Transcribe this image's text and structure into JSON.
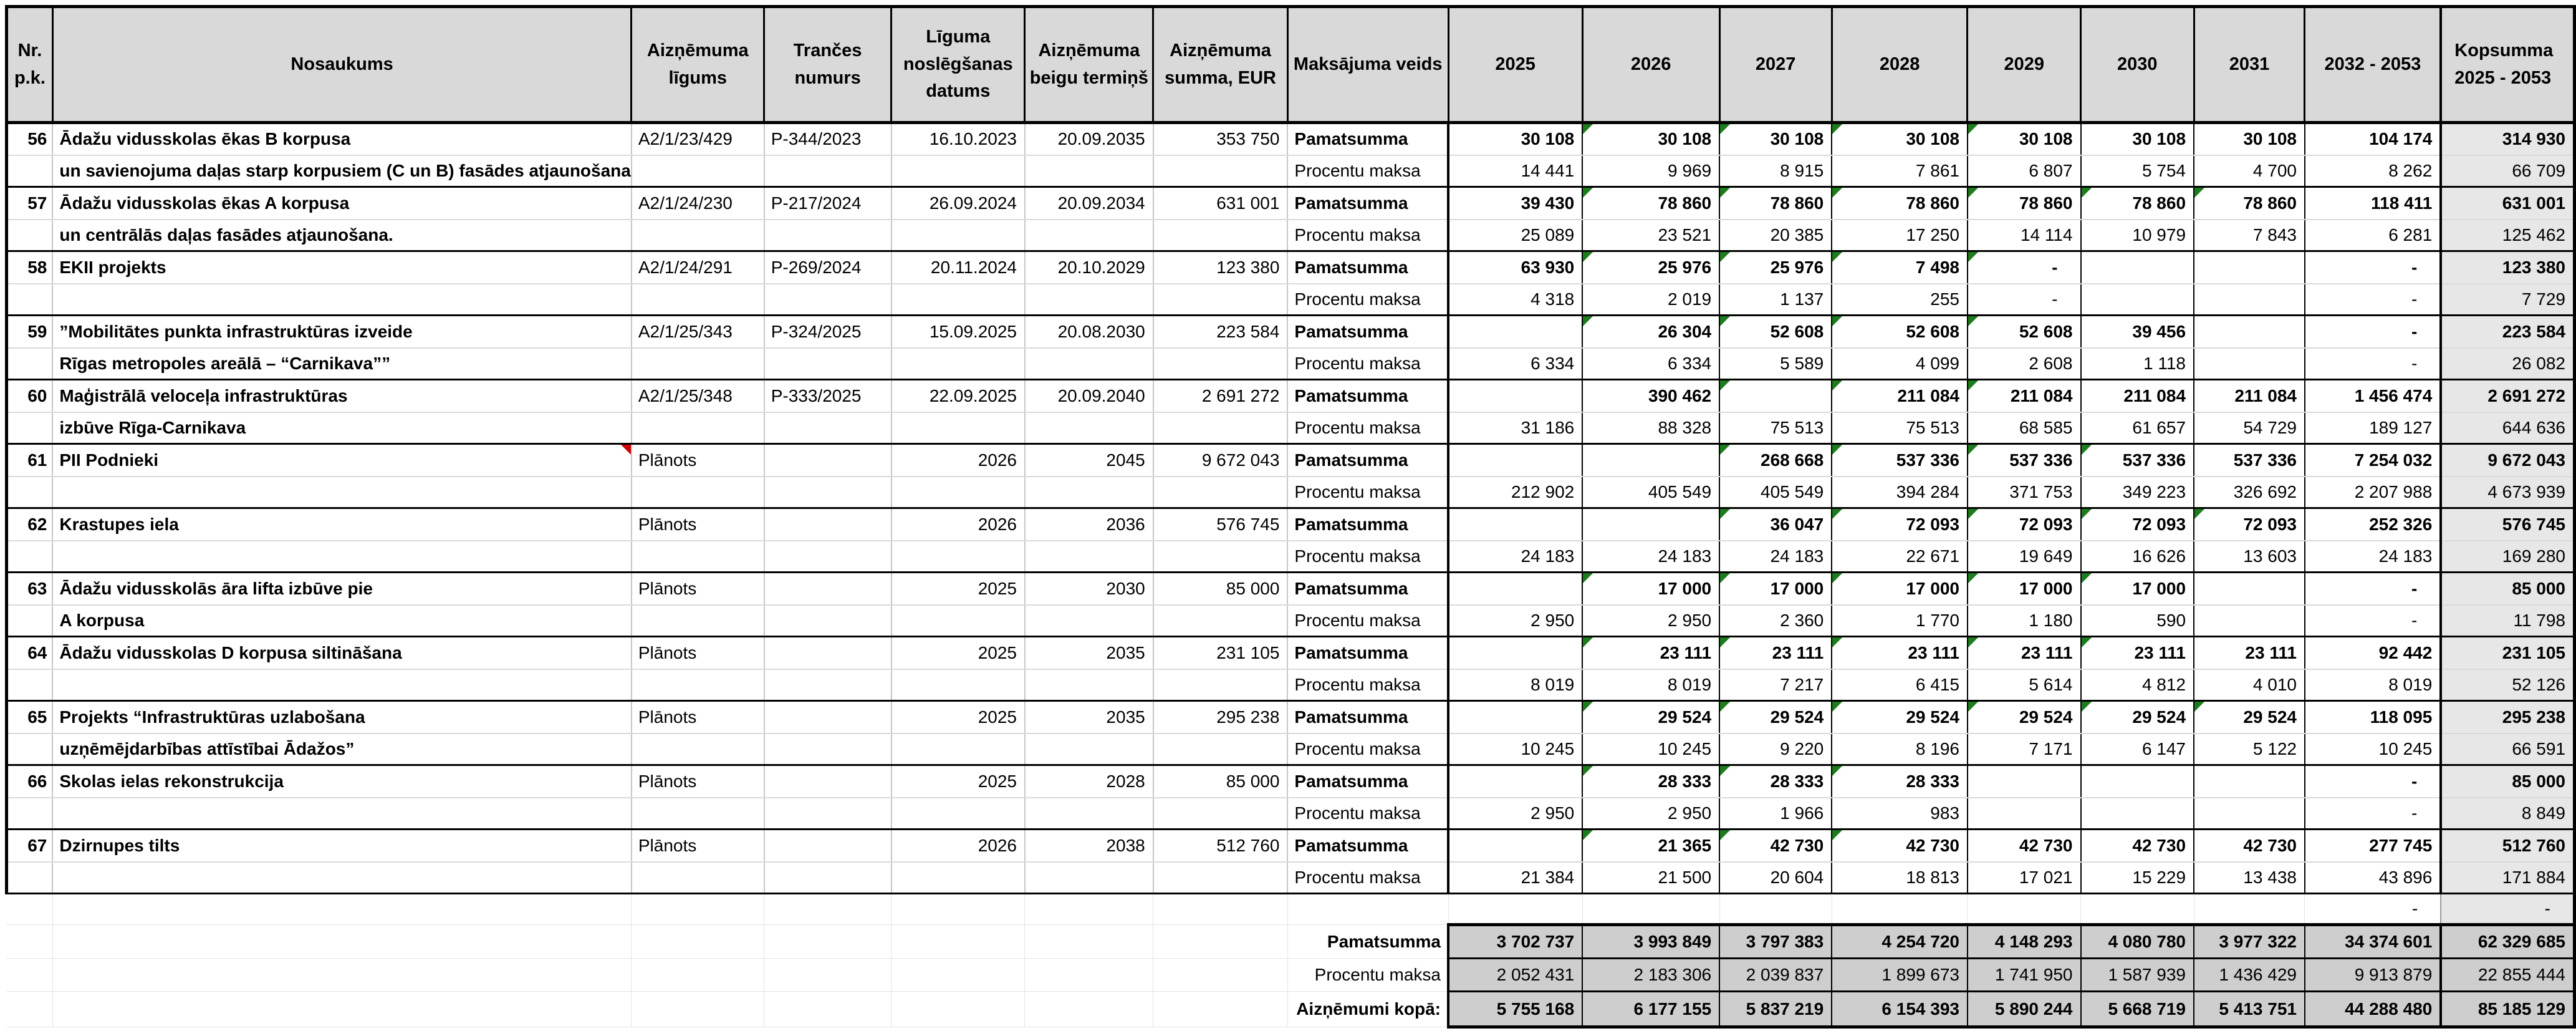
{
  "colors": {
    "header_bg": "#d9d9d9",
    "kopsumma_bg": "#e7e7e7",
    "totals_bg": "#cecece",
    "flag_green": "#1e7c1e",
    "comment_red": "#cc0000",
    "grid_black": "#000000",
    "grid_light": "#c6c6c6"
  },
  "table": {
    "headers": [
      "Nr. p.k.",
      "Nosaukums",
      "Aizņēmuma līgums",
      "Trančes numurs",
      "Līguma noslēgšanas datums",
      "Aizņēmuma beigu termiņš",
      "Aizņēmuma summa, EUR",
      "Maksājuma veids",
      "2025",
      "2026",
      "2027",
      "2028",
      "2029",
      "2030",
      "2031",
      "2032 - 2053",
      "Kopsumma 2025 - 2053"
    ],
    "payment_types": [
      "Pamatsumma",
      "Procentu maksa"
    ],
    "loans": [
      {
        "nr": "56",
        "name1": "Ādažu vidusskolas ēkas B korpusa",
        "name2": "un savienojuma daļas starp korpusiem (C un B) fasādes atjaunošana",
        "contract": "A2/1/23/429",
        "tranche": "P-344/2023",
        "signed": "16.10.2023",
        "ends": "20.09.2035",
        "amount": "353 750",
        "comment": false,
        "flags": [
          1,
          2,
          3,
          4
        ],
        "pamatsumma": [
          "30 108",
          "30 108",
          "30 108",
          "30 108",
          "30 108",
          "30 108",
          "30 108",
          "104 174",
          "314 930"
        ],
        "procentu": [
          "14 441",
          "9 969",
          "8 915",
          "7 861",
          "6 807",
          "5 754",
          "4 700",
          "8 262",
          "66 709"
        ]
      },
      {
        "nr": "57",
        "name1": "Ādažu vidusskolas ēkas A korpusa",
        "name2": "un centrālās daļas fasādes atjaunošana.",
        "contract": "A2/1/24/230",
        "tranche": "P-217/2024",
        "signed": "26.09.2024",
        "ends": "20.09.2034",
        "amount": "631 001",
        "comment": false,
        "flags": [
          1,
          2,
          3,
          4,
          5,
          6
        ],
        "pamatsumma": [
          "39 430",
          "78 860",
          "78 860",
          "78 860",
          "78 860",
          "78 860",
          "78 860",
          "118 411",
          "631 001"
        ],
        "procentu": [
          "25 089",
          "23 521",
          "20 385",
          "17 250",
          "14 114",
          "10 979",
          "7 843",
          "6 281",
          "125 462"
        ]
      },
      {
        "nr": "58",
        "name1": "EKII projekts",
        "name2": "",
        "contract": "A2/1/24/291",
        "tranche": "P-269/2024",
        "signed": "20.11.2024",
        "ends": "20.10.2029",
        "amount": "123 380",
        "comment": false,
        "flags": [
          1,
          2,
          3,
          4
        ],
        "pamatsumma": [
          "63 930",
          "25 976",
          "25 976",
          "7 498",
          "-",
          "",
          "",
          "-",
          "123 380"
        ],
        "procentu": [
          "4 318",
          "2 019",
          "1 137",
          "255",
          "-",
          "",
          "",
          "-",
          "7 729"
        ]
      },
      {
        "nr": "59",
        "name1": "”Mobilitātes punkta infrastruktūras izveide",
        "name2": "Rīgas metropoles areālā – “Carnikava””",
        "contract": "A2/1/25/343",
        "tranche": "P-324/2025",
        "signed": "15.09.2025",
        "ends": "20.08.2030",
        "amount": "223 584",
        "comment": false,
        "flags": [
          1,
          2,
          3,
          4
        ],
        "pamatsumma": [
          "",
          "26 304",
          "52 608",
          "52 608",
          "52 608",
          "39 456",
          "",
          "-",
          "223 584"
        ],
        "procentu": [
          "6 334",
          "6 334",
          "5 589",
          "4 099",
          "2 608",
          "1 118",
          "",
          "-",
          "26 082"
        ]
      },
      {
        "nr": "60",
        "name1": "Maģistrālā  veloceļa infrastruktūras",
        "name2": "izbūve Rīga-Carnikava",
        "contract": "A2/1/25/348",
        "tranche": "P-333/2025",
        "signed": "22.09.2025",
        "ends": "20.09.2040",
        "amount": "2 691 272",
        "comment": false,
        "flags": [
          2,
          3,
          4
        ],
        "pamatsumma": [
          "",
          "390 462",
          "",
          "211 084",
          "211 084",
          "211 084",
          "211 084",
          "1 456 474",
          "2 691 272"
        ],
        "procentu": [
          "31 186",
          "88 328",
          "75 513",
          "75 513",
          "68 585",
          "61 657",
          "54 729",
          "189 127",
          "644 636"
        ]
      },
      {
        "nr": "61",
        "name1": "PII Podnieki",
        "name2": "",
        "contract": "Plānots",
        "tranche": "",
        "signed": "2026",
        "ends": "2045",
        "amount": "9 672 043",
        "comment": true,
        "flags": [
          2,
          3,
          4,
          5
        ],
        "pamatsumma": [
          "",
          "",
          "268 668",
          "537 336",
          "537 336",
          "537 336",
          "537 336",
          "7 254 032",
          "9 672 043"
        ],
        "procentu": [
          "212 902",
          "405 549",
          "405 549",
          "394 284",
          "371 753",
          "349 223",
          "326 692",
          "2 207 988",
          "4 673 939"
        ]
      },
      {
        "nr": "62",
        "name1": "Krastupes iela",
        "name2": "",
        "contract": "Plānots",
        "tranche": "",
        "signed": "2026",
        "ends": "2036",
        "amount": "576 745",
        "comment": false,
        "flags": [
          2,
          3,
          4,
          5,
          6
        ],
        "pamatsumma": [
          "",
          "",
          "36 047",
          "72 093",
          "72 093",
          "72 093",
          "72 093",
          "252 326",
          "576 745"
        ],
        "procentu": [
          "24 183",
          "24 183",
          "24 183",
          "22 671",
          "19 649",
          "16 626",
          "13 603",
          "24 183",
          "169 280"
        ]
      },
      {
        "nr": "63",
        "name1": "Ādažu vidusskolās āra lifta izbūve pie",
        "name2": "A korpusa",
        "contract": "Plānots",
        "tranche": "",
        "signed": "2025",
        "ends": "2030",
        "amount": "85 000",
        "comment": false,
        "flags": [
          1,
          2,
          3,
          4,
          5
        ],
        "pamatsumma": [
          "",
          "17 000",
          "17 000",
          "17 000",
          "17 000",
          "17 000",
          "",
          "-",
          "85 000"
        ],
        "procentu": [
          "2 950",
          "2 950",
          "2 360",
          "1 770",
          "1 180",
          "590",
          "",
          "-",
          "11 798"
        ]
      },
      {
        "nr": "64",
        "name1": "Ādažu vidusskolas D korpusa siltināšana",
        "name2": "",
        "contract": "Plānots",
        "tranche": "",
        "signed": "2025",
        "ends": "2035",
        "amount": "231 105",
        "comment": false,
        "flags": [
          1,
          2,
          3,
          4,
          5
        ],
        "pamatsumma": [
          "",
          "23 111",
          "23 111",
          "23 111",
          "23 111",
          "23 111",
          "23 111",
          "92 442",
          "231 105"
        ],
        "procentu": [
          "8 019",
          "8 019",
          "7 217",
          "6 415",
          "5 614",
          "4 812",
          "4 010",
          "8 019",
          "52 126"
        ]
      },
      {
        "nr": "65",
        "name1": "Projekts “Infrastruktūras uzlabošana",
        "name2": "uzņēmējdarbības attīstībai Ādažos”",
        "contract": "Plānots",
        "tranche": "",
        "signed": "2025",
        "ends": "2035",
        "amount": "295 238",
        "comment": false,
        "flags": [
          1,
          2,
          3,
          4,
          5,
          6
        ],
        "pamatsumma": [
          "",
          "29 524",
          "29 524",
          "29 524",
          "29 524",
          "29 524",
          "29 524",
          "118 095",
          "295 238"
        ],
        "procentu": [
          "10 245",
          "10 245",
          "9 220",
          "8 196",
          "7 171",
          "6 147",
          "5 122",
          "10 245",
          "66 591"
        ]
      },
      {
        "nr": "66",
        "name1": "Skolas ielas rekonstrukcija",
        "name2": "",
        "contract": "Plānots",
        "tranche": "",
        "signed": "2025",
        "ends": "2028",
        "amount": "85 000",
        "comment": false,
        "flags": [
          1,
          2,
          3
        ],
        "pamatsumma": [
          "",
          "28 333",
          "28 333",
          "28 333",
          "",
          "",
          "",
          "-",
          "85 000"
        ],
        "procentu": [
          "2 950",
          "2 950",
          "1 966",
          "983",
          "",
          "",
          "",
          "-",
          "8 849"
        ]
      },
      {
        "nr": "67",
        "name1": "Dzirnupes tilts",
        "name2": "",
        "contract": "Plānots",
        "tranche": "",
        "signed": "2026",
        "ends": "2038",
        "amount": "512 760",
        "comment": false,
        "flags": [
          1,
          2,
          3
        ],
        "pamatsumma": [
          "",
          "21 365",
          "42 730",
          "42 730",
          "42 730",
          "42 730",
          "42 730",
          "277 745",
          "512 760"
        ],
        "procentu": [
          "21 384",
          "21 500",
          "20 604",
          "18 813",
          "17 021",
          "15 229",
          "13 438",
          "43 896",
          "171 884"
        ]
      }
    ],
    "dash_row": {
      "y2032_2053": "-",
      "kopsumma": "-"
    },
    "totals": {
      "rows": [
        {
          "label": "Pamatsumma",
          "values": [
            "3 702 737",
            "3 993 849",
            "3 797 383",
            "4 254 720",
            "4 148 293",
            "4 080 780",
            "3 977 322",
            "34 374 601",
            "62 329 685"
          ]
        },
        {
          "label": "Procentu maksa",
          "values": [
            "2 052 431",
            "2 183 306",
            "2 039 837",
            "1 899 673",
            "1 741 950",
            "1 587 939",
            "1 436 429",
            "9 913 879",
            "22 855 444"
          ]
        },
        {
          "label": "Aizņēmumi kopā:",
          "values": [
            "5 755 168",
            "6 177 155",
            "5 837 219",
            "6 154 393",
            "5 890 244",
            "5 668 719",
            "5 413 751",
            "44 288 480",
            "85 185 129"
          ]
        }
      ]
    }
  }
}
